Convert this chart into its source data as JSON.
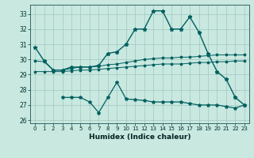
{
  "x": [
    0,
    1,
    2,
    3,
    4,
    5,
    6,
    7,
    8,
    9,
    10,
    11,
    12,
    13,
    14,
    15,
    16,
    17,
    18,
    19,
    20,
    21,
    22,
    23
  ],
  "line_top": [
    30.8,
    29.9,
    29.3,
    29.3,
    29.5,
    29.5,
    29.5,
    29.6,
    30.4,
    30.5,
    31.0,
    32.0,
    32.0,
    33.2,
    33.2,
    32.0,
    32.0,
    32.8,
    31.8,
    30.4,
    29.2,
    28.7,
    27.5,
    27.0
  ],
  "line_upper_band": [
    29.9,
    29.85,
    29.3,
    29.3,
    29.4,
    29.5,
    29.5,
    29.55,
    29.65,
    29.7,
    29.8,
    29.9,
    30.0,
    30.05,
    30.1,
    30.1,
    30.15,
    30.15,
    30.2,
    30.25,
    30.3,
    30.3,
    30.3,
    30.3
  ],
  "line_lower_band": [
    29.2,
    29.2,
    29.2,
    29.2,
    29.25,
    29.3,
    29.3,
    29.35,
    29.4,
    29.45,
    29.5,
    29.55,
    29.6,
    29.65,
    29.7,
    29.7,
    29.7,
    29.75,
    29.8,
    29.8,
    29.85,
    29.85,
    29.9,
    29.9
  ],
  "line_bottom": [
    null,
    null,
    null,
    27.5,
    27.5,
    27.5,
    27.2,
    26.5,
    27.5,
    28.5,
    27.4,
    27.35,
    27.3,
    27.2,
    27.2,
    27.2,
    27.2,
    27.1,
    27.0,
    27.0,
    27.0,
    26.9,
    26.8,
    27.0
  ],
  "background_color": "#c8e8e0",
  "grid_color": "#a0c8c0",
  "line_color": "#006060",
  "xlabel": "Humidex (Indice chaleur)",
  "ylim": [
    25.8,
    33.6
  ],
  "xlim": [
    -0.5,
    23.5
  ],
  "yticks": [
    26,
    27,
    28,
    29,
    30,
    31,
    32,
    33
  ],
  "xticks": [
    0,
    1,
    2,
    3,
    4,
    5,
    6,
    7,
    8,
    9,
    10,
    11,
    12,
    13,
    14,
    15,
    16,
    17,
    18,
    19,
    20,
    21,
    22,
    23
  ]
}
